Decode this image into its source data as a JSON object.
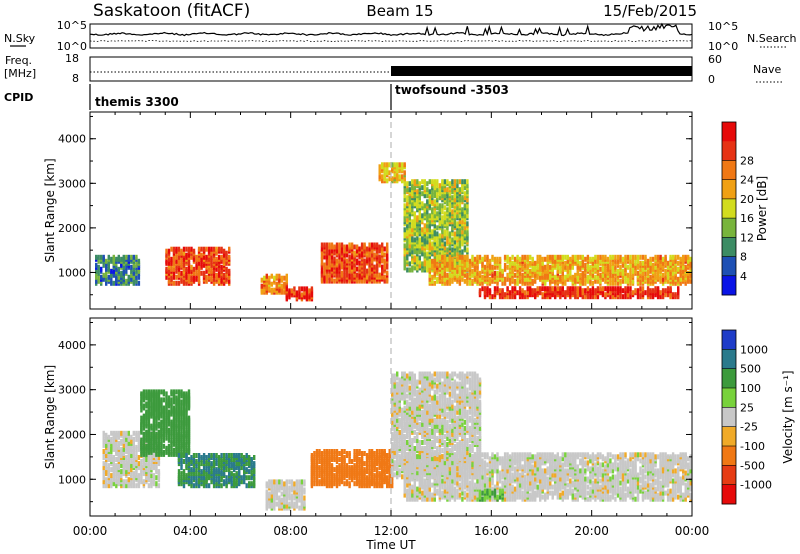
{
  "header": {
    "station": "Saskatoon (fitACF)",
    "beam": "Beam 15",
    "date": "15/Feb/2015"
  },
  "noise_panel": {
    "left_label": "N.Sky",
    "right_label": "N.Search",
    "left_ticks": [
      "10^5",
      "10^0"
    ],
    "right_ticks": [
      "10^5",
      "10^0"
    ]
  },
  "freq_panel": {
    "left_label_top": "Freq.",
    "left_label_unit": "[MHz]",
    "right_label": "Nave",
    "left_ticks": [
      "18",
      "8"
    ],
    "right_ticks": [
      "60",
      "0"
    ]
  },
  "cpid_panel": {
    "label": "CPID",
    "modes": [
      {
        "name": "themis 3300",
        "start_hour": 0
      },
      {
        "name": "twofsound -3503",
        "start_hour": 12
      }
    ]
  },
  "x_axis": {
    "label": "Time UT",
    "ticks": [
      "00:00",
      "04:00",
      "08:00",
      "12:00",
      "16:00",
      "20:00",
      "00:00"
    ],
    "range_hours": [
      0,
      24
    ]
  },
  "chart_data": [
    {
      "type": "heatmap",
      "panel": "power",
      "ylabel": "Slant Range [km]",
      "ylim": [
        180,
        4600
      ],
      "yticks": [
        1000,
        2000,
        3000,
        4000
      ],
      "xlim": [
        0,
        24
      ],
      "colorbar": {
        "label": "Power [dB]",
        "ticks": [
          "4",
          "8",
          "12",
          "16",
          "20",
          "24",
          "28"
        ],
        "range": [
          0,
          32
        ],
        "colors": [
          "#0a14e6",
          "#1e50b4",
          "#3c8c64",
          "#78b43c",
          "#d2dc1e",
          "#f0a014",
          "#f07814",
          "#e63214",
          "#e60a0a"
        ]
      },
      "regions": [
        {
          "hours": [
            0.2,
            2.0
          ],
          "range_km": [
            700,
            1300
          ],
          "level_db": 8
        },
        {
          "hours": [
            3.0,
            5.5
          ],
          "range_km": [
            700,
            1500
          ],
          "level_db": 26
        },
        {
          "hours": [
            6.8,
            7.8
          ],
          "range_km": [
            500,
            900
          ],
          "level_db": 22
        },
        {
          "hours": [
            7.8,
            8.8
          ],
          "range_km": [
            350,
            600
          ],
          "level_db": 28
        },
        {
          "hours": [
            9.2,
            11.8
          ],
          "range_km": [
            750,
            1600
          ],
          "level_db": 26
        },
        {
          "hours": [
            11.5,
            12.5
          ],
          "range_km": [
            3000,
            3400
          ],
          "level_db": 18
        },
        {
          "hours": [
            12.5,
            15.0
          ],
          "range_km": [
            1000,
            3000
          ],
          "level_db": 14
        },
        {
          "hours": [
            13.5,
            24.0
          ],
          "range_km": [
            700,
            1300
          ],
          "level_db": 20
        },
        {
          "hours": [
            15.5,
            23.5
          ],
          "range_km": [
            400,
            600
          ],
          "level_db": 28
        }
      ]
    },
    {
      "type": "heatmap",
      "panel": "velocity",
      "ylabel": "Slant Range [km]",
      "ylim": [
        180,
        4600
      ],
      "yticks": [
        1000,
        2000,
        3000,
        4000
      ],
      "xlim": [
        0,
        24
      ],
      "colorbar": {
        "label": "Velocity [m s⁻¹]",
        "ticks": [
          "1000",
          "500",
          "100",
          "25",
          "-25",
          "-100",
          "-500",
          "-1000"
        ],
        "colors": [
          "#1e3cc8",
          "#2a7a8c",
          "#3c9a3c",
          "#78d23c",
          "#c8c8c8",
          "#f0aa28",
          "#f07814",
          "#e63c14",
          "#e60a0a"
        ]
      },
      "regions": [
        {
          "hours": [
            0.5,
            2.8
          ],
          "range_km": [
            800,
            2000
          ],
          "velocity": 0
        },
        {
          "hours": [
            2.0,
            4.0
          ],
          "range_km": [
            1500,
            2900
          ],
          "velocity": 300
        },
        {
          "hours": [
            3.5,
            6.5
          ],
          "range_km": [
            800,
            1500
          ],
          "velocity": 500
        },
        {
          "hours": [
            7.0,
            8.5
          ],
          "range_km": [
            300,
            900
          ],
          "velocity": 0
        },
        {
          "hours": [
            8.8,
            12.0
          ],
          "range_km": [
            800,
            1600
          ],
          "velocity": -300
        },
        {
          "hours": [
            12.5,
            24.0
          ],
          "range_km": [
            500,
            1500
          ],
          "velocity": 0
        },
        {
          "hours": [
            12.0,
            15.5
          ],
          "range_km": [
            1000,
            3300
          ],
          "velocity": 0
        },
        {
          "hours": [
            15.5,
            16.5
          ],
          "range_km": [
            500,
            700
          ],
          "velocity": 100
        }
      ]
    }
  ]
}
